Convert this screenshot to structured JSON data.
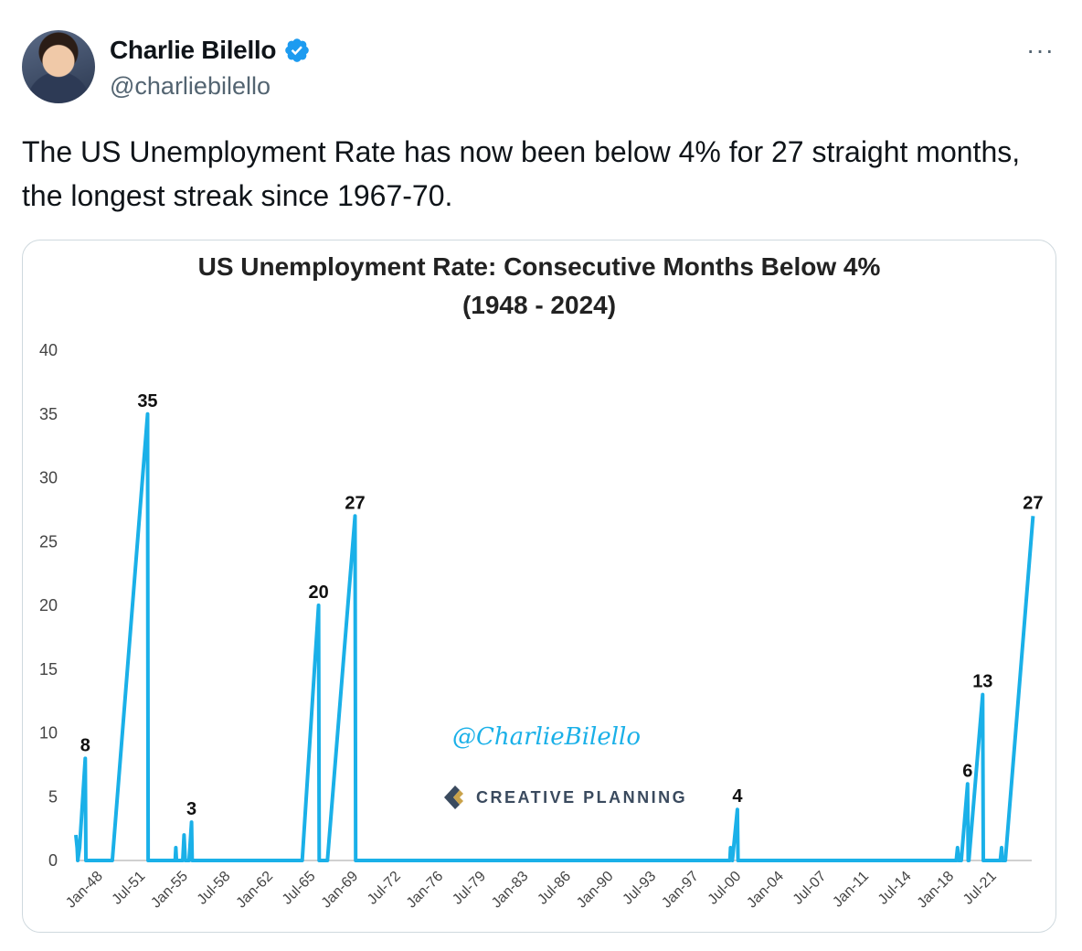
{
  "tweet": {
    "author_name": "Charlie Bilello",
    "handle": "@charliebilello",
    "more_label": "···",
    "text": "The US Unemployment Rate has now been below 4% for 27 straight months, the longest streak since 1967-70."
  },
  "image": {
    "watermark": "@CharlieBilello",
    "brand": "CREATIVE PLANNING"
  },
  "colors": {
    "line": "#1ab0e8",
    "verified": "#1d9bf0",
    "axis": "#d0d0d0"
  },
  "chart_data": {
    "type": "line",
    "title": "US Unemployment Rate: Consecutive Months Below 4%",
    "subtitle": "(1948 - 2024)",
    "xlabel": "",
    "ylabel": "",
    "ylim": [
      0,
      40
    ],
    "yticks": [
      0,
      5,
      10,
      15,
      20,
      25,
      30,
      35,
      40
    ],
    "grid": false,
    "x_tick_labels": [
      "Jan-48",
      "Jul-51",
      "Jan-55",
      "Jul-58",
      "Jan-62",
      "Jul-65",
      "Jan-69",
      "Jul-72",
      "Jan-76",
      "Jul-79",
      "Jan-83",
      "Jul-86",
      "Jan-90",
      "Jul-93",
      "Jan-97",
      "Jul-00",
      "Jan-04",
      "Jul-07",
      "Jan-11",
      "Jul-14",
      "Jan-18",
      "Jul-21"
    ],
    "x_domain": [
      1948.0,
      2024.0
    ],
    "series": [
      {
        "points": [
          [
            1948.0,
            2
          ],
          [
            1948.1,
            1
          ],
          [
            1948.15,
            0
          ],
          [
            1948.3,
            1
          ],
          [
            1948.75,
            8
          ],
          [
            1948.8,
            0
          ],
          [
            1950.9,
            0
          ],
          [
            1953.7,
            35
          ],
          [
            1953.75,
            0
          ],
          [
            1955.9,
            0
          ],
          [
            1955.95,
            1
          ],
          [
            1956.0,
            0
          ],
          [
            1956.5,
            0
          ],
          [
            1956.6,
            2
          ],
          [
            1956.7,
            0
          ],
          [
            1957.0,
            0
          ],
          [
            1957.2,
            3
          ],
          [
            1957.25,
            0
          ],
          [
            1966.0,
            0
          ],
          [
            1967.3,
            20
          ],
          [
            1967.35,
            0
          ],
          [
            1968.0,
            0
          ],
          [
            1970.2,
            27
          ],
          [
            1970.25,
            0
          ],
          [
            2000.0,
            0
          ],
          [
            2000.05,
            1
          ],
          [
            2000.2,
            0
          ],
          [
            2000.6,
            4
          ],
          [
            2000.65,
            0
          ],
          [
            2018.0,
            0
          ],
          [
            2018.1,
            1
          ],
          [
            2018.2,
            0
          ],
          [
            2018.4,
            0
          ],
          [
            2018.9,
            6
          ],
          [
            2018.95,
            0
          ],
          [
            2019.0,
            0
          ],
          [
            2020.1,
            13
          ],
          [
            2020.15,
            0
          ],
          [
            2021.5,
            0
          ],
          [
            2021.6,
            1
          ],
          [
            2021.65,
            0
          ],
          [
            2021.9,
            0
          ],
          [
            2024.1,
            27
          ]
        ]
      }
    ],
    "data_labels": [
      {
        "x": 1948.75,
        "y": 8,
        "text": "8"
      },
      {
        "x": 1953.7,
        "y": 35,
        "text": "35"
      },
      {
        "x": 1957.2,
        "y": 3,
        "text": "3"
      },
      {
        "x": 1967.3,
        "y": 20,
        "text": "20"
      },
      {
        "x": 1970.2,
        "y": 27,
        "text": "27"
      },
      {
        "x": 2000.6,
        "y": 4,
        "text": "4"
      },
      {
        "x": 2018.9,
        "y": 6,
        "text": "6"
      },
      {
        "x": 2020.1,
        "y": 13,
        "text": "13"
      },
      {
        "x": 2024.1,
        "y": 27,
        "text": "27"
      }
    ]
  }
}
